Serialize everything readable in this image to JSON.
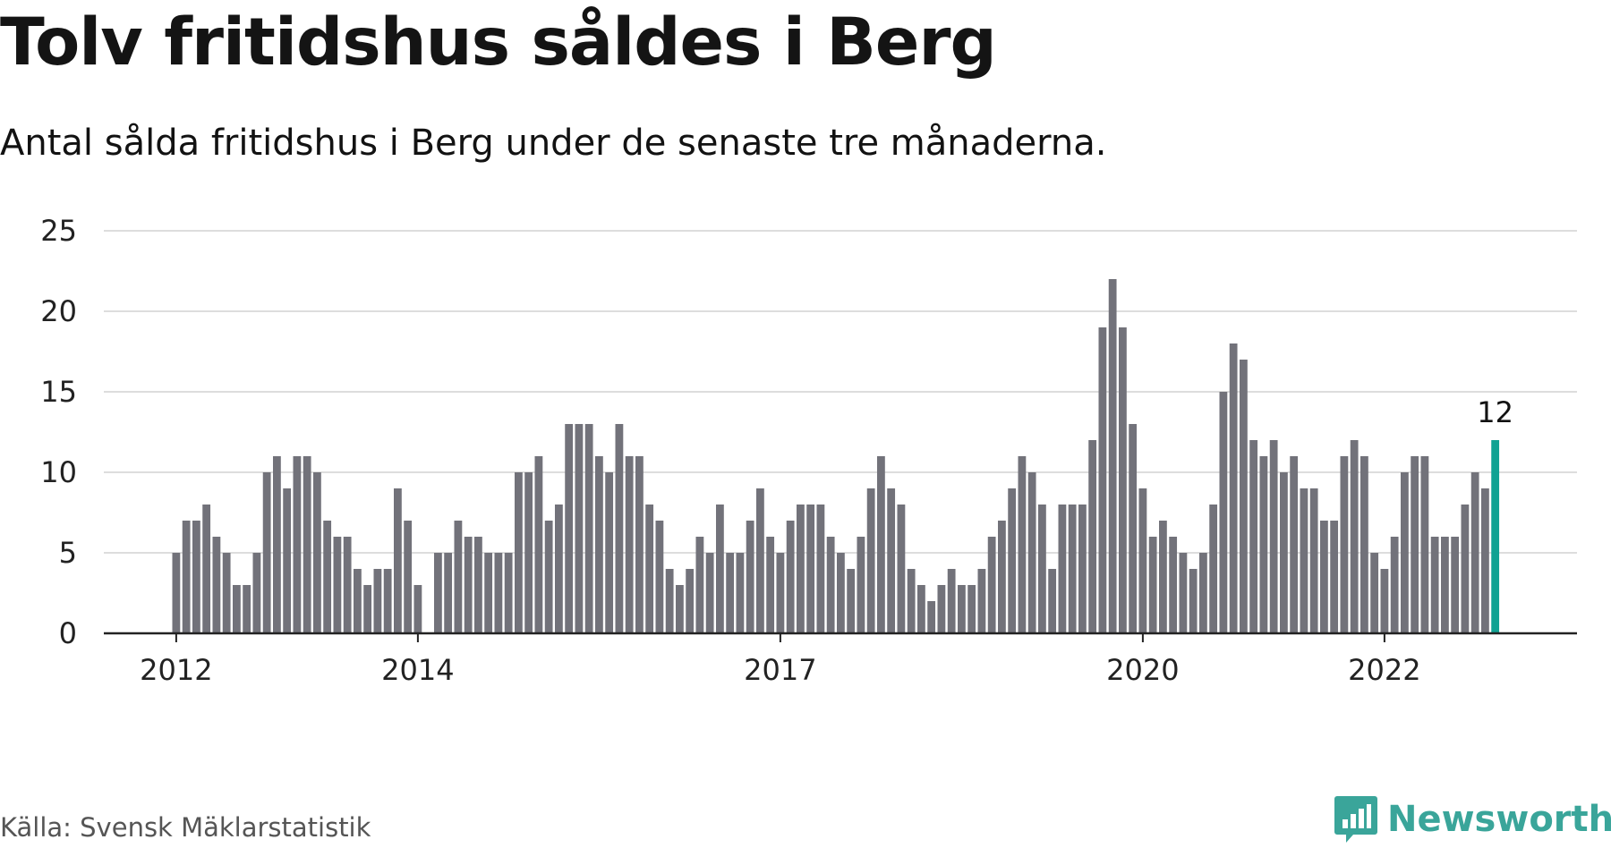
{
  "title": "Tolv fritidshus såldes i Berg",
  "subtitle": "Antal sålda fritidshus i Berg under de senaste tre månaderna.",
  "source": "Källa: Svensk Mäklarstatistik",
  "brand": {
    "name": "Newsworthy",
    "color": "#3aa59a",
    "icon": "newsworthy-chart-bubble-icon"
  },
  "colors": {
    "bar": "#72727a",
    "highlight": "#11a293",
    "grid": "#dddddd",
    "axis": "#222222"
  },
  "chart_data": {
    "type": "bar",
    "title": "Tolv fritidshus såldes i Berg",
    "subtitle": "Antal sålda fritidshus i Berg under de senaste tre månaderna.",
    "xlabel": "",
    "ylabel": "",
    "ylim": [
      0,
      25
    ],
    "yticks": [
      0,
      5,
      10,
      15,
      20,
      25
    ],
    "grid": true,
    "legend": "none",
    "start": "2012-01",
    "xtick_labels": [
      {
        "label": "2012",
        "month": "2012-01"
      },
      {
        "label": "2014",
        "month": "2014-01"
      },
      {
        "label": "2017",
        "month": "2017-01"
      },
      {
        "label": "2020",
        "month": "2020-01"
      },
      {
        "label": "2022",
        "month": "2022-01"
      }
    ],
    "highlight_last": true,
    "last_value_label": "12",
    "values": [
      5,
      7,
      7,
      8,
      6,
      5,
      3,
      3,
      5,
      10,
      11,
      9,
      11,
      11,
      10,
      7,
      6,
      6,
      4,
      3,
      4,
      4,
      9,
      7,
      3,
      0,
      5,
      5,
      7,
      6,
      6,
      5,
      5,
      5,
      10,
      10,
      11,
      7,
      8,
      13,
      13,
      13,
      11,
      10,
      13,
      11,
      11,
      8,
      7,
      4,
      3,
      4,
      6,
      5,
      8,
      5,
      5,
      7,
      9,
      6,
      5,
      7,
      8,
      8,
      8,
      6,
      5,
      4,
      6,
      9,
      11,
      9,
      8,
      4,
      3,
      2,
      3,
      4,
      3,
      3,
      4,
      6,
      7,
      9,
      11,
      10,
      8,
      4,
      8,
      8,
      8,
      12,
      19,
      22,
      19,
      13,
      9,
      6,
      7,
      6,
      5,
      4,
      5,
      8,
      15,
      18,
      17,
      12,
      11,
      12,
      10,
      11,
      9,
      9,
      7,
      7,
      11,
      12,
      11,
      5,
      4,
      6,
      10,
      11,
      11,
      6,
      6,
      6,
      8,
      10,
      9,
      12
    ]
  }
}
